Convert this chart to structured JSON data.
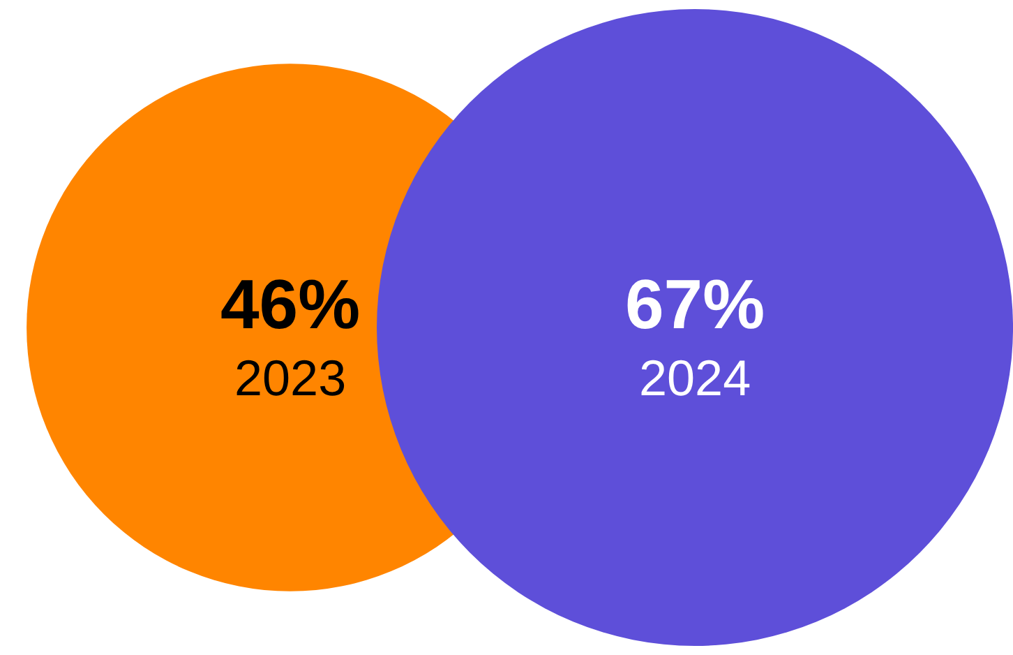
{
  "chart_data": {
    "type": "other",
    "categories": [
      "2023",
      "2024"
    ],
    "values": [
      46,
      67
    ],
    "value_labels": [
      "46%",
      "67%"
    ],
    "colors": [
      "#ff8500",
      "#5e4fd9"
    ]
  }
}
